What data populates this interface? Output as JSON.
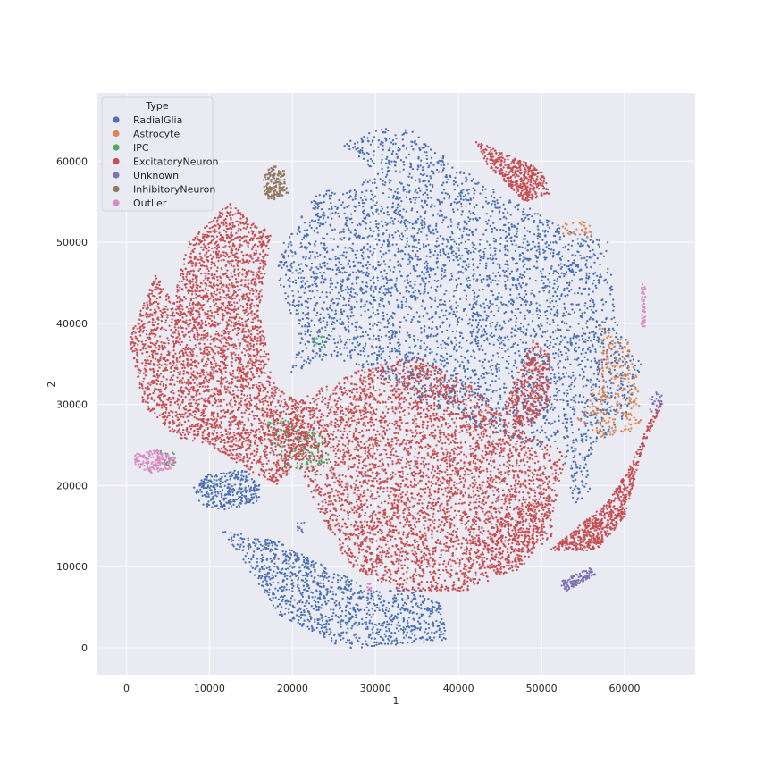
{
  "chart_data": {
    "type": "scatter",
    "title": "",
    "xlabel": "1",
    "ylabel": "2",
    "xlim": [
      -3500,
      68500
    ],
    "ylim": [
      -3300,
      68400
    ],
    "xticks": [
      0,
      10000,
      20000,
      30000,
      40000,
      50000,
      60000
    ],
    "yticks": [
      0,
      10000,
      20000,
      30000,
      40000,
      50000,
      60000
    ],
    "grid": true,
    "background_color": "#eaeaf2",
    "legend": {
      "title": "Type",
      "placement": "top-left"
    },
    "series": [
      {
        "name": "RadialGlia",
        "color": "#4c72b0",
        "clusters": [
          {
            "poly": [
              [
                19000,
                50000
              ],
              [
                23000,
                56000
              ],
              [
                30000,
                58000
              ],
              [
                26000,
                62000
              ],
              [
                29500,
                64000
              ],
              [
                34000,
                64000
              ],
              [
                39000,
                60000
              ],
              [
                45000,
                56000
              ],
              [
                52000,
                52500
              ],
              [
                58000,
                50000
              ],
              [
                58500,
                45000
              ],
              [
                59000,
                40000
              ],
              [
                62000,
                35000
              ],
              [
                60000,
                28000
              ],
              [
                56000,
                24000
              ],
              [
                56500,
                20000
              ],
              [
                54000,
                17500
              ],
              [
                52500,
                24000
              ],
              [
                46000,
                26000
              ],
              [
                40000,
                28000
              ],
              [
                33000,
                32000
              ],
              [
                25000,
                36000
              ],
              [
                20000,
                34000
              ],
              [
                17500,
                27000
              ],
              [
                21000,
                38000
              ],
              [
                18000,
                46000
              ]
            ],
            "n": 4200
          },
          {
            "poly": [
              [
                8000,
                20000
              ],
              [
                10000,
                21500
              ],
              [
                14000,
                22000
              ],
              [
                16000,
                21000
              ],
              [
                16000,
                18000
              ],
              [
                12000,
                17000
              ],
              [
                9000,
                17500
              ]
            ],
            "n": 320
          },
          {
            "poly": [
              [
                11500,
                14500
              ],
              [
                19000,
                13000
              ],
              [
                24000,
                10000
              ],
              [
                30000,
                7000
              ],
              [
                35000,
                7500
              ],
              [
                38000,
                5500
              ],
              [
                38500,
                1000
              ],
              [
                34000,
                500
              ],
              [
                28500,
                0
              ],
              [
                26000,
                0
              ],
              [
                23500,
                1500
              ],
              [
                18500,
                4000
              ]
            ],
            "n": 1100
          }
        ]
      },
      {
        "name": "Astrocyte",
        "color": "#dd8452",
        "clusters": [
          {
            "poly": [
              [
                57000,
                40000
              ],
              [
                60500,
                38000
              ],
              [
                61500,
                33000
              ],
              [
                62000,
                28000
              ],
              [
                60000,
                26000
              ],
              [
                57000,
                26000
              ],
              [
                54000,
                28000
              ],
              [
                56000,
                31000
              ],
              [
                57000,
                36000
              ]
            ],
            "n": 260
          },
          {
            "poly": [
              [
                52500,
                52500
              ],
              [
                56000,
                52500
              ],
              [
                56000,
                50500
              ],
              [
                52500,
                51000
              ]
            ],
            "n": 30
          }
        ]
      },
      {
        "name": "IPC",
        "color": "#55a868",
        "clusters": [
          {
            "poly": [
              [
                17000,
                28000
              ],
              [
                20000,
                28500
              ],
              [
                24000,
                26000
              ],
              [
                24500,
                23000
              ],
              [
                22000,
                21500
              ],
              [
                19000,
                22500
              ],
              [
                17500,
                25000
              ]
            ],
            "n": 160
          },
          {
            "poly": [
              [
                22500,
                38500
              ],
              [
                24000,
                38500
              ],
              [
                24000,
                37000
              ],
              [
                22500,
                37000
              ]
            ],
            "n": 12
          },
          {
            "poly": [
              [
                4000,
                24500
              ],
              [
                6000,
                24000
              ],
              [
                6000,
                22500
              ],
              [
                4000,
                22500
              ]
            ],
            "n": 14
          }
        ]
      },
      {
        "name": "ExcitatoryNeuron",
        "color": "#c44e52",
        "clusters": [
          {
            "poly": [
              [
                300,
                38000
              ],
              [
                3500,
                46000
              ],
              [
                5500,
                43000
              ],
              [
                7500,
                50000
              ],
              [
                12500,
                55000
              ],
              [
                15000,
                52500
              ],
              [
                17500,
                51500
              ],
              [
                16000,
                41000
              ],
              [
                18000,
                32500
              ],
              [
                21000,
                30000
              ],
              [
                22000,
                25500
              ],
              [
                18500,
                20000
              ],
              [
                14500,
                22000
              ],
              [
                10000,
                25000
              ],
              [
                6000,
                26000
              ],
              [
                2000,
                30000
              ]
            ],
            "n": 3400
          },
          {
            "poly": [
              [
                20000,
                30000
              ],
              [
                27000,
                34000
              ],
              [
                35000,
                36000
              ],
              [
                42000,
                32000
              ],
              [
                47000,
                27000
              ],
              [
                53000,
                24000
              ],
              [
                51500,
                17000
              ],
              [
                48000,
                10000
              ],
              [
                41000,
                7000
              ],
              [
                33000,
                7000
              ],
              [
                27000,
                10000
              ],
              [
                24000,
                15000
              ],
              [
                21000,
                22000
              ],
              [
                19000,
                26000
              ]
            ],
            "n": 4100
          },
          {
            "poly": [
              [
                45500,
                30000
              ],
              [
                49000,
                38000
              ],
              [
                51000,
                36000
              ],
              [
                51000,
                30000
              ],
              [
                48500,
                27500
              ],
              [
                46000,
                27000
              ]
            ],
            "n": 380
          },
          {
            "poly": [
              [
                42000,
                62500
              ],
              [
                50000,
                59000
              ],
              [
                51000,
                56000
              ],
              [
                48000,
                55000
              ],
              [
                43500,
                59500
              ]
            ],
            "n": 420
          },
          {
            "poly": [
              [
                51000,
                12000
              ],
              [
                58000,
                18000
              ],
              [
                61000,
                23000
              ],
              [
                63000,
                28000
              ],
              [
                65000,
                31000
              ],
              [
                62000,
                24000
              ],
              [
                60000,
                16000
              ],
              [
                56500,
                12000
              ]
            ],
            "n": 650
          },
          {
            "poly": [
              [
                41000,
                12000
              ],
              [
                45000,
                16000
              ],
              [
                51000,
                20000
              ],
              [
                51500,
                14000
              ],
              [
                47500,
                10500
              ],
              [
                43000,
                9000
              ]
            ],
            "n": 300
          }
        ]
      },
      {
        "name": "Unknown",
        "color": "#8172b3",
        "clusters": [
          {
            "poly": [
              [
                52000,
                8000
              ],
              [
                56000,
                10000
              ],
              [
                56500,
                9000
              ],
              [
                53000,
                7000
              ]
            ],
            "n": 110
          },
          {
            "poly": [
              [
                63000,
                31500
              ],
              [
                64500,
                31500
              ],
              [
                64500,
                29000
              ],
              [
                63000,
                29000
              ]
            ],
            "n": 25
          },
          {
            "poly": [
              [
                20500,
                15500
              ],
              [
                21500,
                15500
              ],
              [
                21500,
                14000
              ],
              [
                20500,
                14000
              ]
            ],
            "n": 12
          }
        ]
      },
      {
        "name": "InhibitoryNeuron",
        "color": "#937860",
        "clusters": [
          {
            "poly": [
              [
                16500,
                58000
              ],
              [
                17500,
                59500
              ],
              [
                19000,
                59000
              ],
              [
                19500,
                56000
              ],
              [
                17500,
                55000
              ],
              [
                16500,
                56000
              ]
            ],
            "n": 160
          },
          {
            "poly": [
              [
                4500,
                23500
              ],
              [
                6000,
                23500
              ],
              [
                6000,
                22500
              ],
              [
                4500,
                22500
              ]
            ],
            "n": 14
          }
        ]
      },
      {
        "name": "Outlier",
        "color": "#da8bc3",
        "clusters": [
          {
            "poly": [
              [
                1000,
                24000
              ],
              [
                3500,
                24500
              ],
              [
                6000,
                23500
              ],
              [
                5500,
                22000
              ],
              [
                3000,
                21500
              ],
              [
                1000,
                22500
              ]
            ],
            "n": 170
          },
          {
            "poly": [
              [
                62000,
                45000
              ],
              [
                62500,
                45000
              ],
              [
                62500,
                39500
              ],
              [
                62000,
                39500
              ]
            ],
            "n": 40
          },
          {
            "poly": [
              [
                29000,
                8000
              ],
              [
                29500,
                8000
              ],
              [
                29500,
                7000
              ],
              [
                29000,
                7000
              ]
            ],
            "n": 8
          }
        ]
      }
    ]
  }
}
